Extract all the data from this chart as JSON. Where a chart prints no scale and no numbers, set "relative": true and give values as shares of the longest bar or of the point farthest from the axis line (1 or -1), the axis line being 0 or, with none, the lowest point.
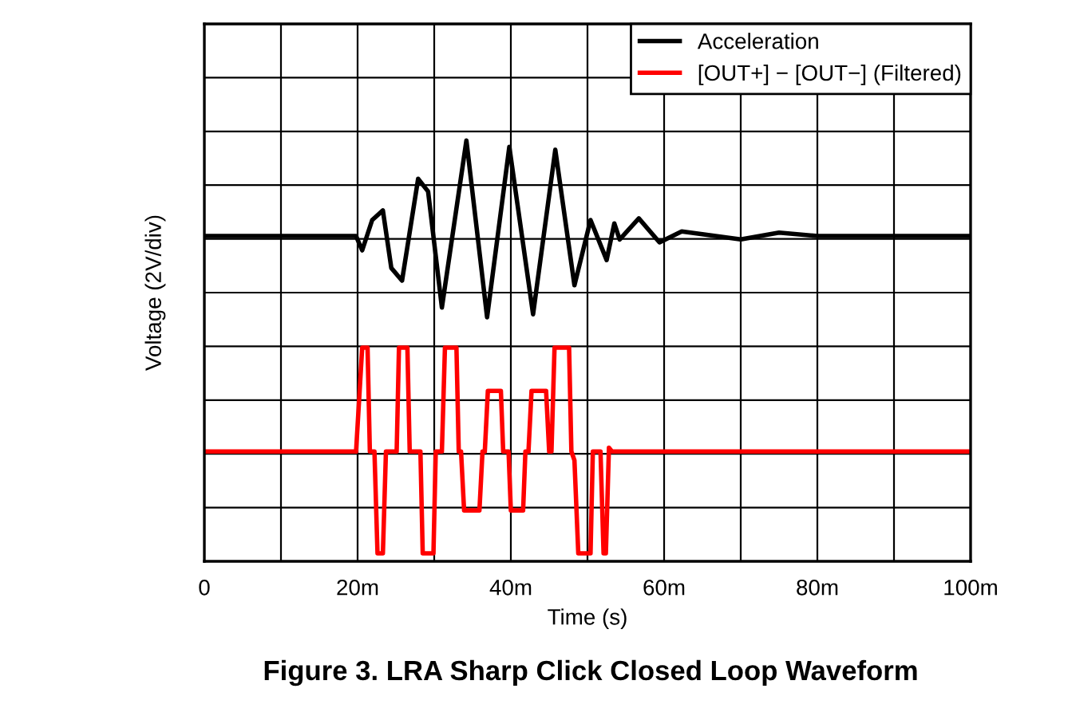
{
  "chart_data": {
    "type": "line",
    "title": "Figure 3. LRA Sharp Click Closed Loop Waveform",
    "xlabel": "Time (s)",
    "ylabel": "Voltage (2V/div)",
    "relative": true,
    "grid": true,
    "legend": "top right",
    "xlim": [
      0,
      100
    ],
    "xticks": [
      0,
      {
        "value": 10,
        "label": null
      },
      {
        "value": 20,
        "label": "20m"
      },
      {
        "value": 30,
        "label": null
      },
      {
        "value": 40,
        "label": "40m"
      },
      {
        "value": 50,
        "label": null
      },
      {
        "value": 60,
        "label": "60m"
      },
      {
        "value": 70,
        "label": null
      },
      {
        "value": 80,
        "label": "80m"
      },
      {
        "value": 90,
        "label": null
      },
      {
        "value": 100,
        "label": "100m"
      }
    ],
    "series": [
      {
        "name": "Acceleration",
        "color": "#000000",
        "x": [
          0,
          19.8,
          20.6,
          21.9,
          23.3,
          24.4,
          25.8,
          27.9,
          29.2,
          31.0,
          34.2,
          36.9,
          39.8,
          42.9,
          45.8,
          48.3,
          50.4,
          52.5,
          53.5,
          54.2,
          56.7,
          59.4,
          62.3,
          70,
          75,
          80,
          90,
          100
        ],
        "values": [
          0.773,
          0.773,
          0.739,
          0.811,
          0.834,
          0.697,
          0.667,
          0.909,
          0.879,
          0.603,
          1.0,
          0.58,
          0.985,
          0.587,
          0.978,
          0.656,
          0.811,
          0.716,
          0.803,
          0.765,
          0.815,
          0.758,
          0.784,
          0.765,
          0.781,
          0.773,
          0.773,
          0.773
        ]
      },
      {
        "name": "[OUT+] − [OUT−] (Filtered)",
        "color": "#ff0000",
        "x": [
          0,
          19.8,
          20.6,
          21.3,
          21.6,
          22.2,
          22.6,
          23.0,
          23.3,
          23.7,
          24.0,
          25.1,
          25.4,
          25.8,
          26.5,
          26.8,
          28.2,
          28.5,
          28.7,
          29.9,
          30.2,
          30.5,
          31.0,
          31.4,
          31.7,
          32.9,
          33.2,
          33.5,
          33.9,
          34.3,
          35.9,
          36.3,
          36.6,
          37.0,
          37.3,
          38.7,
          39.0,
          39.4,
          39.7,
          40.0,
          40.4,
          41.6,
          41.9,
          42.3,
          42.7,
          43.1,
          44.6,
          45.0,
          45.3,
          45.7,
          46.2,
          47.6,
          47.9,
          48.3,
          48.8,
          49.1,
          50.4,
          50.7,
          51.0,
          51.7,
          52.1,
          52.4,
          52.8,
          53.2,
          100
        ],
        "values": [
          0.261,
          0.261,
          0.508,
          0.508,
          0.261,
          0.261,
          0.019,
          0.019,
          0.019,
          0.261,
          0.261,
          0.261,
          0.508,
          0.508,
          0.508,
          0.261,
          0.261,
          0.019,
          0.019,
          0.019,
          0.261,
          0.261,
          0.261,
          0.508,
          0.508,
          0.508,
          0.261,
          0.261,
          0.121,
          0.121,
          0.121,
          0.261,
          0.261,
          0.405,
          0.405,
          0.405,
          0.261,
          0.261,
          0.261,
          0.121,
          0.121,
          0.121,
          0.261,
          0.261,
          0.405,
          0.405,
          0.405,
          0.261,
          0.261,
          0.508,
          0.508,
          0.508,
          0.261,
          0.24,
          0.019,
          0.019,
          0.019,
          0.261,
          0.261,
          0.261,
          0.019,
          0.019,
          0.27,
          0.261,
          0.261
        ]
      }
    ]
  }
}
